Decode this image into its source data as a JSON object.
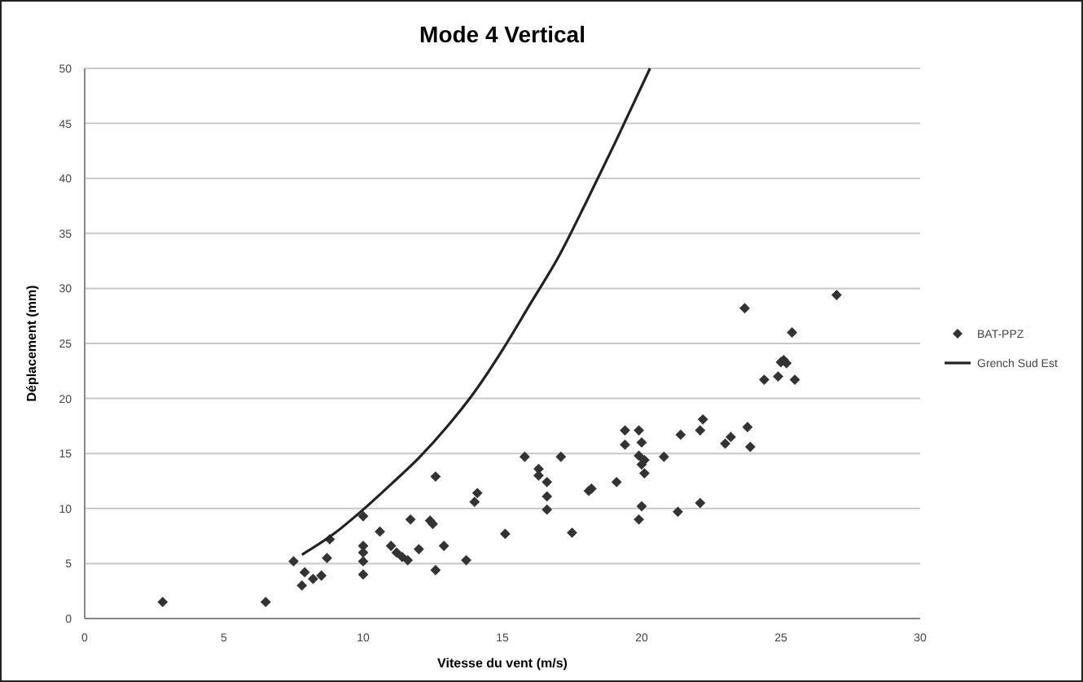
{
  "chart_data": {
    "type": "scatter",
    "title": "Mode 4 Vertical",
    "xlabel": "Vitesse du vent (m/s)",
    "ylabel": "Déplacement (mm)",
    "xlim": [
      0,
      30
    ],
    "xticks": [
      0,
      5,
      10,
      15,
      20,
      25,
      30
    ],
    "ylim": [
      0,
      50
    ],
    "yticks": [
      0,
      5,
      10,
      15,
      20,
      25,
      30,
      35,
      40,
      45,
      50
    ],
    "grid": "y",
    "legend": "right",
    "series": [
      {
        "name": "BAT-PPZ",
        "marker": "diamond",
        "color": "#333333",
        "x": [
          2.8,
          6.5,
          7.5,
          7.9,
          7.8,
          8.2,
          8.5,
          8.7,
          8.8,
          10,
          10,
          10,
          10,
          10,
          10.6,
          11,
          11.2,
          11.4,
          11.6,
          11.7,
          12,
          12.4,
          12.5,
          12.6,
          12.6,
          12.9,
          13.7,
          14,
          14.1,
          15.1,
          15.8,
          16.3,
          16.3,
          16.6,
          16.6,
          16.6,
          17.1,
          17.5,
          18.1,
          18.2,
          19.1,
          19.4,
          19.4,
          19.9,
          20,
          19.9,
          20,
          20.1,
          20.1,
          20,
          19.9,
          20.8,
          21.3,
          21.4,
          22.1,
          22.2,
          22.1,
          23,
          23.2,
          23.8,
          23.9,
          23.7,
          24.4,
          24.9,
          25,
          25.1,
          25.2,
          25.4,
          25.5,
          27
        ],
        "values": [
          1.5,
          1.5,
          5.2,
          4.2,
          3.0,
          3.6,
          3.9,
          5.5,
          7.2,
          9.3,
          6.6,
          6.0,
          5.2,
          4.0,
          7.9,
          6.6,
          6.0,
          5.6,
          5.3,
          9.0,
          6.3,
          8.9,
          8.6,
          12.9,
          4.4,
          6.6,
          5.3,
          10.6,
          11.4,
          7.7,
          14.7,
          13.6,
          13.0,
          12.4,
          11.1,
          9.9,
          14.7,
          7.8,
          11.6,
          11.8,
          12.4,
          17.1,
          15.8,
          17.1,
          16.0,
          14.8,
          14.0,
          14.4,
          13.2,
          10.2,
          9.0,
          14.7,
          9.7,
          16.7,
          17.1,
          18.1,
          10.5,
          15.9,
          16.5,
          17.4,
          15.6,
          28.2,
          21.7,
          22.0,
          23.3,
          23.5,
          23.2,
          26.0,
          21.7,
          29.4
        ]
      },
      {
        "name": "Grench Sud Est",
        "type": "line",
        "color": "#222222",
        "x": [
          7.8,
          9,
          10,
          11,
          12,
          13,
          14,
          15,
          16,
          17,
          18,
          19,
          20.3
        ],
        "values": [
          5.8,
          7.8,
          9.9,
          12.2,
          14.6,
          17.4,
          20.6,
          24.4,
          28.6,
          32.8,
          37.8,
          43.0,
          50
        ]
      }
    ]
  }
}
